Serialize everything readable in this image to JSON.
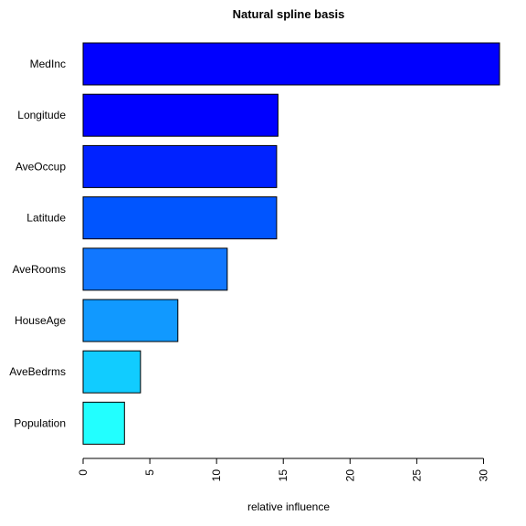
{
  "chart_data": {
    "type": "bar",
    "orientation": "horizontal",
    "title": "Natural spline basis",
    "xlabel": "relative influence",
    "ylabel": "",
    "categories": [
      "MedInc",
      "Longitude",
      "AveOccup",
      "Latitude",
      "AveRooms",
      "HouseAge",
      "AveBedrms",
      "Population"
    ],
    "values": [
      31.2,
      14.6,
      14.5,
      14.5,
      10.8,
      7.1,
      4.3,
      3.1
    ],
    "colors": [
      "#0000ff",
      "#0000ff",
      "#0022ff",
      "#0055ff",
      "#1177ff",
      "#1199ff",
      "#11ccff",
      "#22ffff"
    ],
    "xlim": [
      0,
      31.2
    ],
    "xticks": [
      0,
      5,
      10,
      15,
      20,
      25,
      30
    ],
    "grid": false,
    "legend": "none"
  }
}
